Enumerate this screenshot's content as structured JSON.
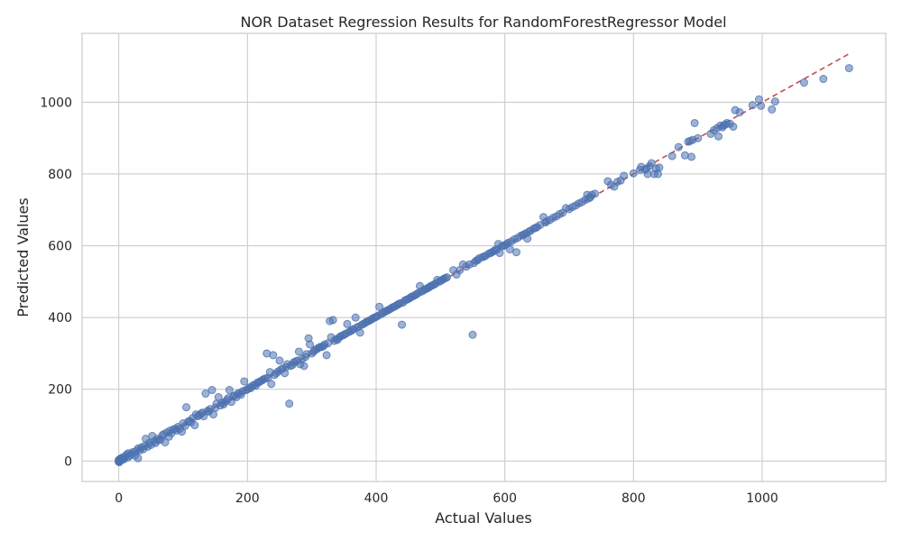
{
  "chart_data": {
    "type": "scatter",
    "title": "NOR Dataset Regression Results for RandomForestRegressor Model",
    "xlabel": "Actual Values",
    "ylabel": "Predicted Values",
    "xlim": [
      -57,
      1192
    ],
    "ylim": [
      -57,
      1192
    ],
    "xticks": [
      0,
      200,
      400,
      600,
      800,
      1000
    ],
    "yticks": [
      0,
      200,
      400,
      600,
      800,
      1000
    ],
    "xtick_labels": [
      "0",
      "200",
      "400",
      "600",
      "800",
      "1000"
    ],
    "ytick_labels": [
      "0",
      "200",
      "400",
      "600",
      "800",
      "1000"
    ],
    "grid": true,
    "marker_color": "#4c72b0",
    "ideal_line": {
      "style": "dashed",
      "color": "#c44e52",
      "from": [
        0,
        0
      ],
      "to": [
        1135,
        1135
      ]
    },
    "points": [
      [
        0,
        0
      ],
      [
        0,
        3
      ],
      [
        0,
        -2
      ],
      [
        1,
        1
      ],
      [
        2,
        6
      ],
      [
        1,
        -3
      ],
      [
        3,
        2
      ],
      [
        4,
        8
      ],
      [
        5,
        3
      ],
      [
        6,
        10
      ],
      [
        8,
        5
      ],
      [
        10,
        12
      ],
      [
        12,
        18
      ],
      [
        14,
        10
      ],
      [
        15,
        22
      ],
      [
        17,
        15
      ],
      [
        20,
        20
      ],
      [
        22,
        25
      ],
      [
        25,
        15
      ],
      [
        27,
        28
      ],
      [
        30,
        8
      ],
      [
        30,
        35
      ],
      [
        33,
        30
      ],
      [
        35,
        38
      ],
      [
        38,
        33
      ],
      [
        40,
        42
      ],
      [
        42,
        62
      ],
      [
        45,
        40
      ],
      [
        47,
        50
      ],
      [
        50,
        45
      ],
      [
        52,
        70
      ],
      [
        55,
        55
      ],
      [
        57,
        50
      ],
      [
        60,
        62
      ],
      [
        62,
        58
      ],
      [
        65,
        60
      ],
      [
        68,
        72
      ],
      [
        70,
        75
      ],
      [
        72,
        52
      ],
      [
        75,
        80
      ],
      [
        78,
        68
      ],
      [
        80,
        85
      ],
      [
        82,
        78
      ],
      [
        85,
        88
      ],
      [
        88,
        90
      ],
      [
        90,
        85
      ],
      [
        92,
        95
      ],
      [
        95,
        90
      ],
      [
        98,
        82
      ],
      [
        100,
        105
      ],
      [
        103,
        98
      ],
      [
        105,
        150
      ],
      [
        108,
        110
      ],
      [
        110,
        112
      ],
      [
        112,
        108
      ],
      [
        115,
        120
      ],
      [
        118,
        100
      ],
      [
        120,
        130
      ],
      [
        123,
        125
      ],
      [
        125,
        128
      ],
      [
        128,
        132
      ],
      [
        130,
        135
      ],
      [
        132,
        125
      ],
      [
        135,
        188
      ],
      [
        138,
        140
      ],
      [
        140,
        138
      ],
      [
        142,
        145
      ],
      [
        145,
        198
      ],
      [
        147,
        130
      ],
      [
        150,
        148
      ],
      [
        152,
        160
      ],
      [
        155,
        178
      ],
      [
        158,
        155
      ],
      [
        160,
        162
      ],
      [
        163,
        158
      ],
      [
        165,
        165
      ],
      [
        168,
        170
      ],
      [
        170,
        175
      ],
      [
        172,
        198
      ],
      [
        175,
        165
      ],
      [
        178,
        180
      ],
      [
        180,
        182
      ],
      [
        183,
        178
      ],
      [
        185,
        188
      ],
      [
        188,
        190
      ],
      [
        190,
        185
      ],
      [
        193,
        195
      ],
      [
        195,
        222
      ],
      [
        198,
        198
      ],
      [
        200,
        200
      ],
      [
        203,
        205
      ],
      [
        205,
        203
      ],
      [
        208,
        210
      ],
      [
        210,
        212
      ],
      [
        213,
        210
      ],
      [
        215,
        218
      ],
      [
        218,
        220
      ],
      [
        220,
        222
      ],
      [
        223,
        225
      ],
      [
        225,
        228
      ],
      [
        228,
        230
      ],
      [
        230,
        300
      ],
      [
        232,
        232
      ],
      [
        235,
        248
      ],
      [
        237,
        215
      ],
      [
        240,
        295
      ],
      [
        242,
        240
      ],
      [
        245,
        245
      ],
      [
        248,
        250
      ],
      [
        250,
        280
      ],
      [
        252,
        255
      ],
      [
        255,
        258
      ],
      [
        258,
        245
      ],
      [
        260,
        262
      ],
      [
        262,
        270
      ],
      [
        265,
        160
      ],
      [
        267,
        265
      ],
      [
        270,
        268
      ],
      [
        272,
        275
      ],
      [
        275,
        278
      ],
      [
        278,
        280
      ],
      [
        280,
        305
      ],
      [
        282,
        270
      ],
      [
        285,
        285
      ],
      [
        288,
        265
      ],
      [
        290,
        290
      ],
      [
        292,
        298
      ],
      [
        295,
        342
      ],
      [
        297,
        325
      ],
      [
        300,
        300
      ],
      [
        303,
        305
      ],
      [
        305,
        310
      ],
      [
        308,
        312
      ],
      [
        310,
        315
      ],
      [
        313,
        318
      ],
      [
        315,
        318
      ],
      [
        318,
        320
      ],
      [
        320,
        325
      ],
      [
        323,
        295
      ],
      [
        325,
        328
      ],
      [
        328,
        390
      ],
      [
        330,
        345
      ],
      [
        333,
        393
      ],
      [
        335,
        335
      ],
      [
        338,
        340
      ],
      [
        340,
        338
      ],
      [
        343,
        345
      ],
      [
        345,
        348
      ],
      [
        348,
        350
      ],
      [
        350,
        352
      ],
      [
        353,
        355
      ],
      [
        355,
        382
      ],
      [
        358,
        360
      ],
      [
        360,
        362
      ],
      [
        363,
        365
      ],
      [
        365,
        368
      ],
      [
        368,
        400
      ],
      [
        370,
        372
      ],
      [
        373,
        375
      ],
      [
        375,
        358
      ],
      [
        378,
        380
      ],
      [
        380,
        382
      ],
      [
        383,
        385
      ],
      [
        385,
        388
      ],
      [
        388,
        390
      ],
      [
        390,
        392
      ],
      [
        393,
        395
      ],
      [
        395,
        398
      ],
      [
        398,
        400
      ],
      [
        400,
        402
      ],
      [
        403,
        405
      ],
      [
        405,
        430
      ],
      [
        408,
        410
      ],
      [
        410,
        412
      ],
      [
        413,
        415
      ],
      [
        415,
        418
      ],
      [
        418,
        420
      ],
      [
        420,
        422
      ],
      [
        423,
        425
      ],
      [
        425,
        428
      ],
      [
        428,
        430
      ],
      [
        430,
        432
      ],
      [
        433,
        435
      ],
      [
        435,
        438
      ],
      [
        438,
        440
      ],
      [
        440,
        380
      ],
      [
        442,
        442
      ],
      [
        445,
        448
      ],
      [
        448,
        450
      ],
      [
        450,
        452
      ],
      [
        453,
        455
      ],
      [
        455,
        458
      ],
      [
        458,
        460
      ],
      [
        460,
        462
      ],
      [
        463,
        465
      ],
      [
        465,
        468
      ],
      [
        468,
        488
      ],
      [
        470,
        472
      ],
      [
        473,
        475
      ],
      [
        475,
        478
      ],
      [
        478,
        480
      ],
      [
        480,
        482
      ],
      [
        483,
        485
      ],
      [
        485,
        488
      ],
      [
        488,
        490
      ],
      [
        490,
        492
      ],
      [
        493,
        495
      ],
      [
        495,
        505
      ],
      [
        498,
        500
      ],
      [
        500,
        502
      ],
      [
        503,
        505
      ],
      [
        505,
        508
      ],
      [
        508,
        510
      ],
      [
        510,
        512
      ],
      [
        520,
        532
      ],
      [
        525,
        520
      ],
      [
        530,
        532
      ],
      [
        535,
        548
      ],
      [
        540,
        542
      ],
      [
        545,
        548
      ],
      [
        550,
        352
      ],
      [
        552,
        552
      ],
      [
        555,
        558
      ],
      [
        558,
        560
      ],
      [
        560,
        565
      ],
      [
        565,
        568
      ],
      [
        568,
        570
      ],
      [
        570,
        572
      ],
      [
        575,
        578
      ],
      [
        578,
        580
      ],
      [
        580,
        582
      ],
      [
        583,
        585
      ],
      [
        585,
        588
      ],
      [
        588,
        590
      ],
      [
        590,
        605
      ],
      [
        592,
        580
      ],
      [
        595,
        598
      ],
      [
        598,
        600
      ],
      [
        600,
        602
      ],
      [
        603,
        605
      ],
      [
        605,
        608
      ],
      [
        608,
        590
      ],
      [
        610,
        612
      ],
      [
        615,
        618
      ],
      [
        618,
        582
      ],
      [
        620,
        622
      ],
      [
        625,
        628
      ],
      [
        628,
        630
      ],
      [
        630,
        632
      ],
      [
        633,
        635
      ],
      [
        635,
        620
      ],
      [
        638,
        640
      ],
      [
        640,
        642
      ],
      [
        645,
        648
      ],
      [
        648,
        650
      ],
      [
        650,
        652
      ],
      [
        655,
        658
      ],
      [
        660,
        680
      ],
      [
        663,
        665
      ],
      [
        665,
        668
      ],
      [
        670,
        672
      ],
      [
        675,
        678
      ],
      [
        680,
        682
      ],
      [
        685,
        688
      ],
      [
        690,
        692
      ],
      [
        695,
        705
      ],
      [
        700,
        702
      ],
      [
        705,
        708
      ],
      [
        710,
        712
      ],
      [
        715,
        718
      ],
      [
        720,
        722
      ],
      [
        725,
        728
      ],
      [
        728,
        742
      ],
      [
        730,
        732
      ],
      [
        733,
        735
      ],
      [
        735,
        742
      ],
      [
        740,
        745
      ],
      [
        760,
        780
      ],
      [
        765,
        770
      ],
      [
        770,
        765
      ],
      [
        775,
        778
      ],
      [
        780,
        782
      ],
      [
        785,
        795
      ],
      [
        800,
        802
      ],
      [
        810,
        812
      ],
      [
        812,
        820
      ],
      [
        818,
        812
      ],
      [
        820,
        815
      ],
      [
        822,
        800
      ],
      [
        825,
        822
      ],
      [
        828,
        830
      ],
      [
        832,
        800
      ],
      [
        835,
        815
      ],
      [
        838,
        800
      ],
      [
        840,
        818
      ],
      [
        860,
        850
      ],
      [
        870,
        875
      ],
      [
        880,
        852
      ],
      [
        885,
        890
      ],
      [
        888,
        892
      ],
      [
        890,
        848
      ],
      [
        892,
        895
      ],
      [
        895,
        942
      ],
      [
        900,
        900
      ],
      [
        920,
        912
      ],
      [
        925,
        922
      ],
      [
        930,
        928
      ],
      [
        932,
        905
      ],
      [
        935,
        935
      ],
      [
        938,
        930
      ],
      [
        940,
        935
      ],
      [
        943,
        938
      ],
      [
        945,
        942
      ],
      [
        950,
        940
      ],
      [
        955,
        932
      ],
      [
        958,
        978
      ],
      [
        965,
        972
      ],
      [
        985,
        992
      ],
      [
        995,
        1008
      ],
      [
        998,
        990
      ],
      [
        1015,
        980
      ],
      [
        1020,
        1002
      ],
      [
        1065,
        1055
      ],
      [
        1095,
        1065
      ],
      [
        1135,
        1095
      ]
    ]
  }
}
